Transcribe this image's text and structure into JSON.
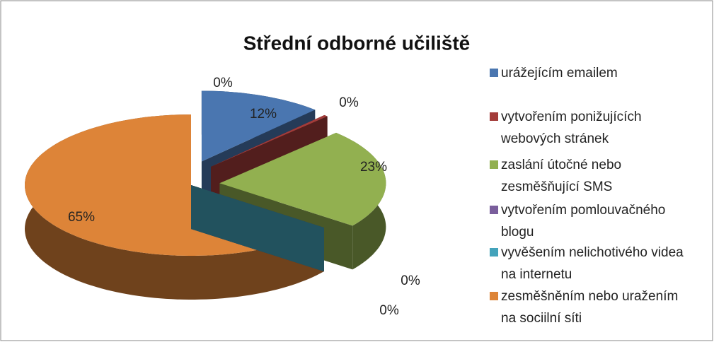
{
  "chart_data": {
    "type": "pie3d",
    "title": "Střední odborné učiliště",
    "categories": [
      "urážejícím emailem",
      "vytvořením ponižujících webových stránek",
      "zaslání útočné nebo zesměšňující SMS",
      "vytvořením pomlouvačného blogu",
      "vyvěšením nelichotivého videa na internetu",
      "zesměšněním nebo uražením na sociilní síti",
      null
    ],
    "values": [
      12,
      0.4,
      23,
      0,
      0,
      65,
      0
    ],
    "value_labels": [
      "12%",
      "0%",
      "23%",
      "0%",
      "0%",
      "65%",
      "0%"
    ],
    "colors": [
      "#4a76b0",
      "#a33c3a",
      "#92b050",
      "#7a5e9c",
      "#43a3bb",
      "#dd8438"
    ],
    "legend": "right"
  }
}
